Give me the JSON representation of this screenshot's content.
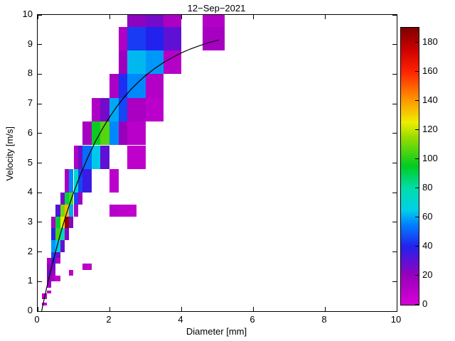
{
  "chart_data": {
    "type": "heatmap",
    "title": "12−Sep−2021",
    "xlabel": "Diameter [mm]",
    "ylabel": "Velocity [m/s]",
    "xlim": [
      0,
      10
    ],
    "ylim": [
      0,
      10
    ],
    "x_ticks": [
      0,
      2,
      4,
      6,
      8,
      10
    ],
    "y_ticks": [
      0,
      1,
      2,
      3,
      4,
      5,
      6,
      7,
      8,
      9,
      10
    ],
    "grid": false,
    "legend": "none",
    "colorbar": {
      "position": "right",
      "range": [
        0,
        190
      ],
      "ticks": [
        0,
        20,
        40,
        60,
        80,
        100,
        120,
        140,
        160,
        180
      ]
    },
    "colormap_stops": [
      [
        0,
        "#d800d8"
      ],
      [
        20,
        "#9900bb"
      ],
      [
        40,
        "#2222ee"
      ],
      [
        55,
        "#0080ff"
      ],
      [
        65,
        "#00d0e8"
      ],
      [
        80,
        "#00ddaa"
      ],
      [
        95,
        "#00cc22"
      ],
      [
        115,
        "#99dd00"
      ],
      [
        125,
        "#eeee00"
      ],
      [
        140,
        "#ff9900"
      ],
      [
        160,
        "#ff2200"
      ],
      [
        175,
        "#cc0000"
      ],
      [
        190,
        "#7f0000"
      ]
    ],
    "cells_format": [
      "d_min_mm",
      "d_max_mm",
      "v_min_ms",
      "v_max_ms",
      "count"
    ],
    "cells": [
      [
        0.125,
        0.25,
        0.2,
        0.3,
        7
      ],
      [
        0.125,
        0.25,
        0.4,
        0.6,
        11
      ],
      [
        0.25,
        0.375,
        0.6,
        0.7,
        9
      ],
      [
        0.25,
        0.375,
        0.8,
        1.0,
        16
      ],
      [
        0.5,
        0.625,
        1.0,
        1.2,
        7
      ],
      [
        0.25,
        0.375,
        1.0,
        1.2,
        22
      ],
      [
        0.375,
        0.5,
        1.0,
        1.2,
        14
      ],
      [
        0.25,
        0.375,
        1.2,
        1.4,
        28
      ],
      [
        0.375,
        0.5,
        1.2,
        1.4,
        18
      ],
      [
        0.875,
        1.0,
        1.2,
        1.4,
        8
      ],
      [
        0.25,
        0.375,
        1.4,
        1.6,
        20
      ],
      [
        0.375,
        0.5,
        1.4,
        1.6,
        27
      ],
      [
        1.25,
        1.5,
        1.4,
        1.6,
        10
      ],
      [
        0.25,
        0.375,
        1.6,
        1.8,
        12
      ],
      [
        0.375,
        0.5,
        1.6,
        1.8,
        36
      ],
      [
        0.5,
        0.625,
        1.6,
        1.8,
        14
      ],
      [
        0.375,
        0.5,
        1.8,
        2.0,
        46
      ],
      [
        0.5,
        0.625,
        1.8,
        2.0,
        26
      ],
      [
        0.375,
        0.5,
        2.0,
        2.4,
        58
      ],
      [
        0.5,
        0.625,
        2.0,
        2.4,
        64
      ],
      [
        0.625,
        0.75,
        2.0,
        2.4,
        28
      ],
      [
        0.375,
        0.5,
        2.4,
        2.8,
        38
      ],
      [
        0.5,
        0.625,
        2.4,
        2.8,
        104
      ],
      [
        0.625,
        0.75,
        2.4,
        2.8,
        74
      ],
      [
        0.75,
        0.875,
        2.4,
        2.8,
        22
      ],
      [
        0.375,
        0.5,
        2.8,
        3.2,
        16
      ],
      [
        0.5,
        0.625,
        2.8,
        3.2,
        92
      ],
      [
        0.625,
        0.75,
        2.8,
        3.2,
        126
      ],
      [
        0.75,
        0.875,
        2.8,
        3.2,
        186
      ],
      [
        0.875,
        1.0,
        2.8,
        3.2,
        24
      ],
      [
        0.5,
        0.625,
        3.2,
        3.6,
        32
      ],
      [
        0.625,
        0.75,
        3.2,
        3.6,
        110
      ],
      [
        0.75,
        0.875,
        3.2,
        3.6,
        134
      ],
      [
        0.875,
        1.0,
        3.2,
        3.6,
        60
      ],
      [
        1.0,
        1.125,
        3.2,
        3.6,
        14
      ],
      [
        2.0,
        2.25,
        3.2,
        3.6,
        10
      ],
      [
        2.25,
        2.5,
        3.2,
        3.6,
        8
      ],
      [
        2.5,
        2.75,
        3.2,
        3.6,
        7
      ],
      [
        0.625,
        0.75,
        3.6,
        4.0,
        26
      ],
      [
        0.75,
        0.875,
        3.6,
        4.0,
        90
      ],
      [
        0.875,
        1.0,
        3.6,
        4.0,
        106
      ],
      [
        1.0,
        1.125,
        3.6,
        4.0,
        46
      ],
      [
        1.125,
        1.25,
        3.6,
        4.0,
        18
      ],
      [
        0.75,
        0.875,
        4.0,
        4.8,
        15
      ],
      [
        0.875,
        1.0,
        4.0,
        4.8,
        56
      ],
      [
        1.0,
        1.125,
        4.0,
        4.8,
        72
      ],
      [
        1.125,
        1.25,
        4.0,
        4.8,
        46
      ],
      [
        1.25,
        1.5,
        4.0,
        4.8,
        36
      ],
      [
        2.0,
        2.25,
        4.0,
        4.8,
        9
      ],
      [
        1.0,
        1.125,
        4.8,
        5.6,
        12
      ],
      [
        1.125,
        1.25,
        4.8,
        5.6,
        28
      ],
      [
        1.25,
        1.5,
        4.8,
        5.6,
        52
      ],
      [
        1.5,
        1.75,
        4.8,
        5.6,
        64
      ],
      [
        1.75,
        2.0,
        4.8,
        5.6,
        30
      ],
      [
        2.5,
        3.0,
        4.8,
        5.6,
        8
      ],
      [
        1.25,
        1.5,
        5.6,
        6.4,
        16
      ],
      [
        1.5,
        1.75,
        5.6,
        6.4,
        96
      ],
      [
        1.75,
        2.0,
        5.6,
        6.4,
        106
      ],
      [
        2.0,
        2.25,
        5.6,
        6.4,
        56
      ],
      [
        2.25,
        2.5,
        5.6,
        6.4,
        20
      ],
      [
        2.5,
        3.0,
        5.6,
        6.4,
        10
      ],
      [
        1.5,
        1.75,
        6.4,
        7.2,
        13
      ],
      [
        1.75,
        2.0,
        6.4,
        7.2,
        26
      ],
      [
        2.0,
        2.25,
        6.4,
        7.2,
        60
      ],
      [
        2.25,
        2.5,
        6.4,
        7.2,
        46
      ],
      [
        2.5,
        3.0,
        6.4,
        7.2,
        15
      ],
      [
        3.0,
        3.5,
        6.4,
        7.2,
        9
      ],
      [
        2.0,
        2.25,
        7.2,
        8.0,
        14
      ],
      [
        2.25,
        2.5,
        7.2,
        8.0,
        42
      ],
      [
        2.5,
        3.0,
        7.2,
        8.0,
        56
      ],
      [
        3.0,
        3.5,
        7.2,
        8.0,
        12
      ],
      [
        2.25,
        2.5,
        8.0,
        8.8,
        18
      ],
      [
        2.5,
        3.0,
        8.0,
        8.8,
        62
      ],
      [
        3.0,
        3.5,
        8.0,
        8.8,
        58
      ],
      [
        3.5,
        4.0,
        8.0,
        8.8,
        11
      ],
      [
        2.25,
        2.5,
        8.8,
        9.6,
        13
      ],
      [
        2.5,
        3.0,
        8.8,
        9.6,
        44
      ],
      [
        3.0,
        3.5,
        8.8,
        9.6,
        40
      ],
      [
        3.5,
        4.0,
        8.8,
        9.6,
        30
      ],
      [
        4.6,
        5.2,
        8.8,
        9.6,
        16
      ],
      [
        2.5,
        3.0,
        9.6,
        10.4,
        22
      ],
      [
        3.0,
        3.5,
        9.6,
        10.4,
        26
      ],
      [
        3.5,
        4.0,
        9.6,
        10.4,
        14
      ],
      [
        4.6,
        5.2,
        9.6,
        10.4,
        12
      ]
    ],
    "fit_curve": {
      "points": [
        [
          0.11,
          0.0
        ],
        [
          0.2,
          0.52
        ],
        [
          0.3,
          1.05
        ],
        [
          0.4,
          1.55
        ],
        [
          0.5,
          2.02
        ],
        [
          0.6,
          2.46
        ],
        [
          0.7,
          2.88
        ],
        [
          0.8,
          3.28
        ],
        [
          0.9,
          3.65
        ],
        [
          1.0,
          4.0
        ],
        [
          1.2,
          4.64
        ],
        [
          1.4,
          5.2
        ],
        [
          1.6,
          5.71
        ],
        [
          1.8,
          6.15
        ],
        [
          2.0,
          6.55
        ],
        [
          2.2,
          6.9
        ],
        [
          2.4,
          7.21
        ],
        [
          2.6,
          7.49
        ],
        [
          2.8,
          7.73
        ],
        [
          3.0,
          7.95
        ],
        [
          3.25,
          8.18
        ],
        [
          3.5,
          8.39
        ],
        [
          3.75,
          8.56
        ],
        [
          4.0,
          8.72
        ],
        [
          4.25,
          8.85
        ],
        [
          4.5,
          8.96
        ],
        [
          4.75,
          9.06
        ],
        [
          5.0,
          9.14
        ],
        [
          5.05,
          9.15
        ]
      ]
    }
  }
}
